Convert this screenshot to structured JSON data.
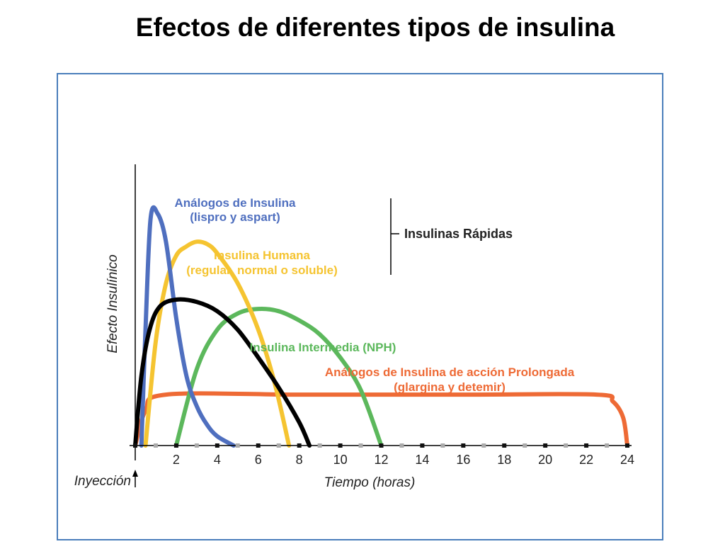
{
  "page": {
    "title": "Efectos de diferentes tipos de insulina"
  },
  "chart_data": {
    "type": "line",
    "title": "Efectos de diferentes tipos de insulina",
    "xlabel": "Tiempo (horas)",
    "ylabel": "Efecto Insulínico",
    "xlim": [
      0,
      24
    ],
    "ylim": [
      0,
      1
    ],
    "x_ticks": [
      2,
      4,
      6,
      8,
      10,
      12,
      14,
      16,
      18,
      20,
      22,
      24
    ],
    "injection_label": "Inyección",
    "grid": false,
    "group_bracket": {
      "label": "Insulinas Rápidas"
    },
    "series": [
      {
        "name": "Análogos de Insulina",
        "sublabel": "(lispro y aspart)",
        "color": "#4f6fbf",
        "points": [
          [
            0.3,
            0
          ],
          [
            0.5,
            0.5
          ],
          [
            0.75,
            0.98
          ],
          [
            1.1,
            1.0
          ],
          [
            1.5,
            0.88
          ],
          [
            2.0,
            0.55
          ],
          [
            2.5,
            0.3
          ],
          [
            3.0,
            0.17
          ],
          [
            3.5,
            0.09
          ],
          [
            4.0,
            0.04
          ],
          [
            4.8,
            0
          ]
        ]
      },
      {
        "name": "Insulina Humana",
        "sublabel": "(regular, normal o soluble)",
        "color": "#f5c431",
        "points": [
          [
            0.5,
            0
          ],
          [
            1.0,
            0.45
          ],
          [
            1.5,
            0.7
          ],
          [
            2.0,
            0.82
          ],
          [
            2.5,
            0.86
          ],
          [
            3.0,
            0.88
          ],
          [
            3.5,
            0.87
          ],
          [
            4.0,
            0.83
          ],
          [
            5.0,
            0.7
          ],
          [
            6.0,
            0.5
          ],
          [
            6.8,
            0.27
          ],
          [
            7.5,
            0
          ]
        ]
      },
      {
        "name": "Insulina Intermedia (NPH)",
        "sublabel": "",
        "color": "#5cb85c",
        "points": [
          [
            2.0,
            0
          ],
          [
            3.0,
            0.33
          ],
          [
            4.0,
            0.5
          ],
          [
            5.0,
            0.57
          ],
          [
            6.0,
            0.59
          ],
          [
            7.0,
            0.58
          ],
          [
            8.0,
            0.54
          ],
          [
            9.0,
            0.48
          ],
          [
            10.0,
            0.38
          ],
          [
            11.0,
            0.24
          ],
          [
            12.0,
            0
          ]
        ]
      },
      {
        "name": "Análogos de Insulina de acción Prolongada",
        "sublabel": "(glargina y detemir)",
        "color": "#ee6a35",
        "points": [
          [
            0.0,
            0
          ],
          [
            0.5,
            0.15
          ],
          [
            1.5,
            0.22
          ],
          [
            8.0,
            0.22
          ],
          [
            16.0,
            0.22
          ],
          [
            22.5,
            0.22
          ],
          [
            23.3,
            0.19
          ],
          [
            23.8,
            0.12
          ],
          [
            24.0,
            0
          ]
        ]
      },
      {
        "name": "",
        "sublabel": "",
        "color": "#000000",
        "points": [
          [
            0.0,
            0
          ],
          [
            0.3,
            0.3
          ],
          [
            0.7,
            0.5
          ],
          [
            1.2,
            0.6
          ],
          [
            2.0,
            0.63
          ],
          [
            3.0,
            0.62
          ],
          [
            4.0,
            0.58
          ],
          [
            5.0,
            0.5
          ],
          [
            6.0,
            0.38
          ],
          [
            7.0,
            0.25
          ],
          [
            8.0,
            0.1
          ],
          [
            8.5,
            0
          ]
        ]
      }
    ]
  }
}
